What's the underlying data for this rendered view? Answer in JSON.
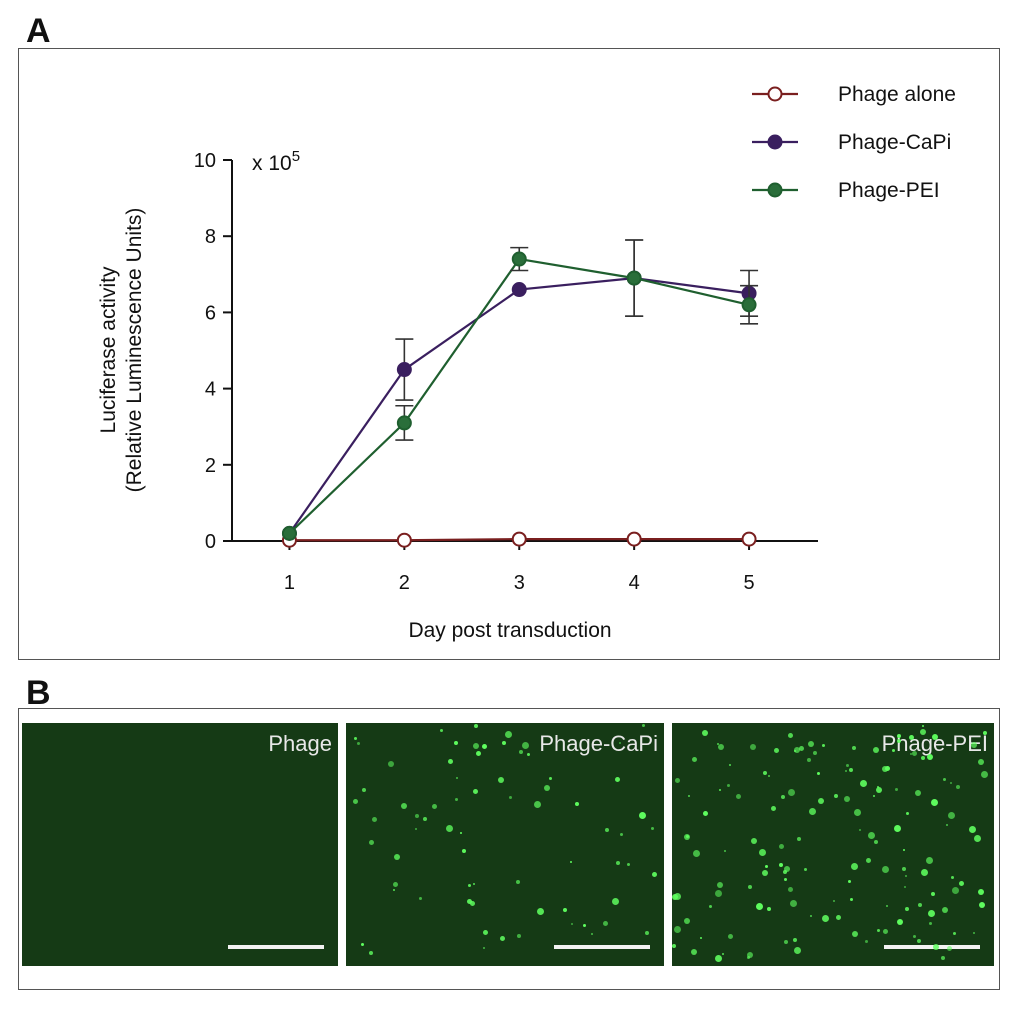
{
  "panel_a": {
    "letter": "A",
    "chart_data": {
      "type": "line",
      "xlabel": "Day post transduction",
      "ylabel_line1": "Luciferase activity",
      "ylabel_line2": "(Relative Luminescence Units)",
      "y_multiplier_prefix": "x 10",
      "y_multiplier_exponent": "5",
      "x": [
        1,
        2,
        3,
        4,
        5
      ],
      "x_ticks": [
        "1",
        "2",
        "3",
        "4",
        "5"
      ],
      "y_ticks": [
        "0",
        "2",
        "4",
        "6",
        "8",
        "10"
      ],
      "xlim": [
        0.5,
        5.6
      ],
      "ylim": [
        0,
        10
      ],
      "legend_position": "top-right",
      "series": [
        {
          "name": "Phage alone",
          "color": "#7a1f1f",
          "fill": "#ffffff",
          "values": [
            0.02,
            0.02,
            0.05,
            0.05,
            0.05
          ],
          "err": [
            0,
            0,
            0,
            0,
            0
          ]
        },
        {
          "name": "Phage-CaPi",
          "color": "#3a1f5f",
          "fill": "#3a1f5f",
          "values": [
            0.2,
            4.5,
            6.6,
            6.9,
            6.5
          ],
          "err": [
            0,
            0.8,
            0,
            1.0,
            0.6
          ]
        },
        {
          "name": "Phage-PEI",
          "color": "#1f5f2f",
          "fill": "#2a6e3a",
          "values": [
            0.2,
            3.1,
            7.4,
            6.9,
            6.2
          ],
          "err": [
            0,
            0.45,
            0.3,
            1.0,
            0.5
          ]
        }
      ]
    }
  },
  "panel_b": {
    "letter": "B",
    "images": [
      {
        "label": "Phage"
      },
      {
        "label": "Phage-CaPi"
      },
      {
        "label": "Phage-PEI"
      }
    ]
  }
}
